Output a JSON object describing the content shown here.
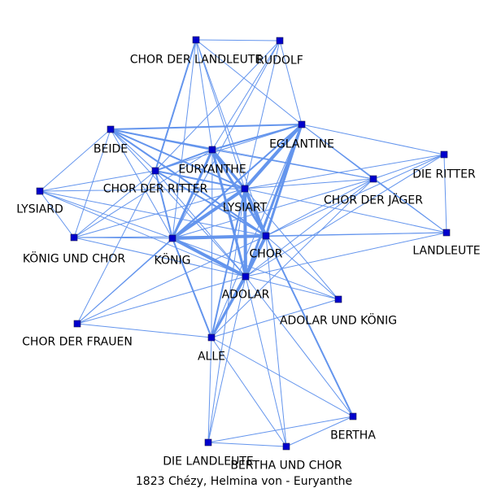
{
  "title": "1823 Chézy, Helmina von - Euryanthe",
  "colors": {
    "edge": "#6495ED",
    "node": "#0000CD",
    "text": "#000000",
    "background": "#ffffff"
  },
  "nodes": [
    {
      "id": "CHOR DER LANDLEUTE",
      "label": "CHOR DER LANDLEUTE"
    },
    {
      "id": "RUDOLF",
      "label": "RUDOLF"
    },
    {
      "id": "BEIDE",
      "label": "BEIDE"
    },
    {
      "id": "EGLANTINE",
      "label": "EGLANTINE"
    },
    {
      "id": "EURYANTHE",
      "label": "EURYANTHE"
    },
    {
      "id": "DIE RITTER",
      "label": "DIE RITTER"
    },
    {
      "id": "CHOR DER RITTER",
      "label": "CHOR DER RITTER"
    },
    {
      "id": "CHOR DER JÄGER",
      "label": "CHOR DER JÄGER"
    },
    {
      "id": "LYSIARD",
      "label": "LYSIARD"
    },
    {
      "id": "LYSIART",
      "label": "LYSIART"
    },
    {
      "id": "LANDLEUTE",
      "label": "LANDLEUTE"
    },
    {
      "id": "KÖNIG UND CHOR",
      "label": "KÖNIG UND CHOR"
    },
    {
      "id": "KÖNIG",
      "label": "KÖNIG"
    },
    {
      "id": "CHOR",
      "label": "CHOR"
    },
    {
      "id": "ADOLAR",
      "label": "ADOLAR"
    },
    {
      "id": "ADOLAR UND KÖNIG",
      "label": "ADOLAR UND KÖNIG"
    },
    {
      "id": "CHOR DER FRAUEN",
      "label": "CHOR DER FRAUEN"
    },
    {
      "id": "ALLE",
      "label": "ALLE"
    },
    {
      "id": "BERTHA",
      "label": "BERTHA"
    },
    {
      "id": "DIE LANDLEUTE",
      "label": "DIE LANDLEUTE"
    },
    {
      "id": "BERTHA UND CHOR",
      "label": "BERTHA UND CHOR"
    }
  ],
  "edges": [
    [
      "KÖNIG",
      "LYSIART",
      4
    ],
    [
      "KÖNIG",
      "CHOR",
      4
    ],
    [
      "KÖNIG",
      "ADOLAR",
      4
    ],
    [
      "KÖNIG",
      "EURYANTHE",
      3
    ],
    [
      "KÖNIG",
      "EGLANTINE",
      2
    ],
    [
      "KÖNIG",
      "CHOR DER RITTER",
      2
    ],
    [
      "KÖNIG",
      "BEIDE",
      1
    ],
    [
      "KÖNIG",
      "LYSIARD",
      1
    ],
    [
      "KÖNIG",
      "KÖNIG UND CHOR",
      1
    ],
    [
      "KÖNIG",
      "ALLE",
      2
    ],
    [
      "KÖNIG",
      "CHOR DER FRAUEN",
      1
    ],
    [
      "KÖNIG",
      "CHOR DER JÄGER",
      1
    ],
    [
      "KÖNIG",
      "LANDLEUTE",
      1
    ],
    [
      "KÖNIG",
      "ADOLAR UND KÖNIG",
      1
    ],
    [
      "KÖNIG",
      "CHOR DER LANDLEUTE",
      1
    ],
    [
      "KÖNIG",
      "RUDOLF",
      1
    ],
    [
      "LYSIART",
      "CHOR",
      4
    ],
    [
      "LYSIART",
      "ADOLAR",
      4
    ],
    [
      "LYSIART",
      "EGLANTINE",
      4
    ],
    [
      "LYSIART",
      "EURYANTHE",
      3
    ],
    [
      "LYSIART",
      "BEIDE",
      2
    ],
    [
      "LYSIART",
      "CHOR DER RITTER",
      2
    ],
    [
      "LYSIART",
      "CHOR DER JÄGER",
      1
    ],
    [
      "LYSIART",
      "DIE RITTER",
      1
    ],
    [
      "LYSIART",
      "ALLE",
      2
    ],
    [
      "LYSIART",
      "LANDLEUTE",
      1
    ],
    [
      "LYSIART",
      "LYSIARD",
      1
    ],
    [
      "LYSIART",
      "KÖNIG UND CHOR",
      1
    ],
    [
      "LYSIART",
      "CHOR DER LANDLEUTE",
      1
    ],
    [
      "LYSIART",
      "RUDOLF",
      1
    ],
    [
      "LYSIART",
      "ADOLAR UND KÖNIG",
      1
    ],
    [
      "LYSIART",
      "DIE LANDLEUTE",
      1
    ],
    [
      "CHOR",
      "ADOLAR",
      4
    ],
    [
      "CHOR",
      "EGLANTINE",
      3
    ],
    [
      "CHOR",
      "EURYANTHE",
      3
    ],
    [
      "CHOR",
      "CHOR DER RITTER",
      2
    ],
    [
      "CHOR",
      "BEIDE",
      2
    ],
    [
      "CHOR",
      "LANDLEUTE",
      1
    ],
    [
      "CHOR",
      "DIE RITTER",
      1
    ],
    [
      "CHOR",
      "CHOR DER JÄGER",
      1
    ],
    [
      "CHOR",
      "ALLE",
      2
    ],
    [
      "CHOR",
      "BERTHA",
      2
    ],
    [
      "CHOR",
      "ADOLAR UND KÖNIG",
      1
    ],
    [
      "CHOR",
      "LYSIARD",
      1
    ],
    [
      "CHOR",
      "KÖNIG UND CHOR",
      1
    ],
    [
      "CHOR",
      "CHOR DER LANDLEUTE",
      1
    ],
    [
      "CHOR",
      "BERTHA UND CHOR",
      1
    ],
    [
      "CHOR",
      "CHOR DER FRAUEN",
      1
    ],
    [
      "ADOLAR",
      "EGLANTINE",
      3
    ],
    [
      "ADOLAR",
      "EURYANTHE",
      3
    ],
    [
      "ADOLAR",
      "ALLE",
      3
    ],
    [
      "ADOLAR",
      "CHOR DER RITTER",
      1
    ],
    [
      "ADOLAR",
      "BEIDE",
      1
    ],
    [
      "ADOLAR",
      "ADOLAR UND KÖNIG",
      1
    ],
    [
      "ADOLAR",
      "BERTHA",
      1
    ],
    [
      "ADOLAR",
      "CHOR DER FRAUEN",
      1
    ],
    [
      "ADOLAR",
      "DIE LANDLEUTE",
      1
    ],
    [
      "ADOLAR",
      "BERTHA UND CHOR",
      1
    ],
    [
      "ADOLAR",
      "CHOR DER JÄGER",
      1
    ],
    [
      "ADOLAR",
      "LANDLEUTE",
      1
    ],
    [
      "ADOLAR",
      "KÖNIG UND CHOR",
      1
    ],
    [
      "ADOLAR",
      "LYSIARD",
      1
    ],
    [
      "ADOLAR",
      "DIE RITTER",
      1
    ],
    [
      "EGLANTINE",
      "EURYANTHE",
      2
    ],
    [
      "EGLANTINE",
      "BEIDE",
      2
    ],
    [
      "EGLANTINE",
      "CHOR DER RITTER",
      1
    ],
    [
      "EGLANTINE",
      "DIE RITTER",
      1
    ],
    [
      "EGLANTINE",
      "CHOR DER JÄGER",
      1
    ],
    [
      "EGLANTINE",
      "LANDLEUTE",
      1
    ],
    [
      "EGLANTINE",
      "CHOR DER LANDLEUTE",
      1
    ],
    [
      "EGLANTINE",
      "RUDOLF",
      1
    ],
    [
      "EGLANTINE",
      "ALLE",
      1
    ],
    [
      "EURYANTHE",
      "CHOR DER RITTER",
      2
    ],
    [
      "EURYANTHE",
      "BEIDE",
      2
    ],
    [
      "EURYANTHE",
      "CHOR DER LANDLEUTE",
      1
    ],
    [
      "EURYANTHE",
      "RUDOLF",
      1
    ],
    [
      "EURYANTHE",
      "ALLE",
      1
    ],
    [
      "EURYANTHE",
      "CHOR DER JÄGER",
      1
    ],
    [
      "EURYANTHE",
      "KÖNIG UND CHOR",
      1
    ],
    [
      "CHOR DER LANDLEUTE",
      "RUDOLF",
      1
    ],
    [
      "CHOR DER LANDLEUTE",
      "CHOR DER RITTER",
      2
    ],
    [
      "RUDOLF",
      "CHOR DER RITTER",
      1
    ],
    [
      "BEIDE",
      "CHOR DER RITTER",
      1
    ],
    [
      "BEIDE",
      "LYSIARD",
      1
    ],
    [
      "BEIDE",
      "KÖNIG UND CHOR",
      1
    ],
    [
      "BEIDE",
      "CHOR DER JÄGER",
      1
    ],
    [
      "CHOR DER RITTER",
      "LYSIARD",
      1
    ],
    [
      "CHOR DER RITTER",
      "KÖNIG UND CHOR",
      1
    ],
    [
      "CHOR DER RITTER",
      "CHOR DER FRAUEN",
      1
    ],
    [
      "DIE RITTER",
      "LANDLEUTE",
      1
    ],
    [
      "DIE RITTER",
      "CHOR DER JÄGER",
      1
    ],
    [
      "CHOR DER JÄGER",
      "LANDLEUTE",
      1
    ],
    [
      "CHOR DER JÄGER",
      "ALLE",
      1
    ],
    [
      "LYSIARD",
      "KÖNIG UND CHOR",
      1
    ],
    [
      "ALLE",
      "DIE LANDLEUTE",
      1
    ],
    [
      "ALLE",
      "BERTHA UND CHOR",
      1
    ],
    [
      "ALLE",
      "BERTHA",
      1
    ],
    [
      "ALLE",
      "CHOR DER FRAUEN",
      1
    ],
    [
      "ALLE",
      "ADOLAR UND KÖNIG",
      1
    ],
    [
      "BERTHA",
      "DIE LANDLEUTE",
      1
    ],
    [
      "BERTHA",
      "BERTHA UND CHOR",
      1
    ],
    [
      "DIE LANDLEUTE",
      "BERTHA UND CHOR",
      1
    ],
    [
      "CHOR DER FRAUEN",
      "EGLANTINE",
      1
    ]
  ]
}
